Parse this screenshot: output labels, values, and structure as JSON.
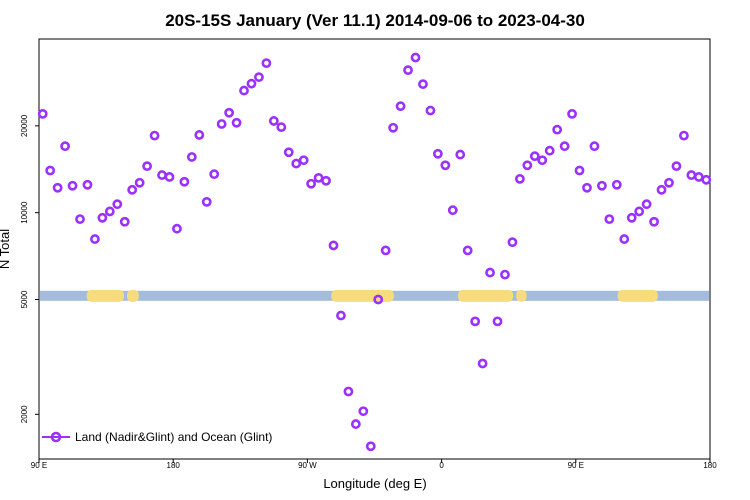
{
  "chart_data": {
    "type": "scatter",
    "title": "20S-15S January (Ver 11.1)   2014-09-06 to 2023-04-30",
    "xlabel": "Longitude (deg E)",
    "ylabel": "N Total",
    "y_scale": "log",
    "ylim": [
      1400,
      40000
    ],
    "x_ticks": [
      {
        "value": 90,
        "label": "90 E"
      },
      {
        "value": 180,
        "label": "180"
      },
      {
        "value": 270,
        "label": "90 W"
      },
      {
        "value": 360,
        "label": "0"
      },
      {
        "value": 450,
        "label": "90 E"
      },
      {
        "value": 540,
        "label": "180"
      }
    ],
    "y_ticks": [
      {
        "value": 2000,
        "label": "2000"
      },
      {
        "value": 5000,
        "label": "5000"
      },
      {
        "value": 10000,
        "label": "10000"
      },
      {
        "value": 20000,
        "label": "20000"
      }
    ],
    "xlim": [
      90,
      540
    ],
    "legend": {
      "position": "bottom-left",
      "entries": [
        "Land (Nadir&Glint) and Ocean (Glint)"
      ]
    },
    "colors": {
      "marker": "#9b30ff",
      "ocean": "#a3bcdc",
      "land": "#f7dc7d"
    },
    "series": [
      {
        "name": "Land (Nadir&Glint) and Ocean (Glint)",
        "x": [
          92.5,
          97.5,
          102.5,
          107.5,
          112.5,
          117.5,
          122.5,
          127.5,
          132.5,
          137.5,
          142.5,
          147.5,
          152.5,
          157.5,
          162.5,
          167.5,
          172.5,
          177.5,
          182.5,
          187.5,
          192.5,
          197.5,
          202.5,
          207.5,
          212.5,
          217.5,
          222.5,
          227.5,
          232.5,
          237.5,
          242.5,
          247.5,
          252.5,
          257.5,
          262.5,
          267.5,
          272.5,
          277.5,
          282.5,
          287.5,
          292.5,
          297.5,
          302.5,
          307.5,
          312.5,
          317.5,
          322.5,
          327.5,
          332.5,
          337.5,
          342.5,
          347.5,
          352.5,
          357.5,
          362.5,
          367.5,
          372.5,
          377.5,
          382.5,
          387.5,
          392.5,
          397.5,
          402.5,
          407.5,
          412.5,
          417.5,
          422.5,
          427.5,
          432.5,
          437.5,
          442.5,
          447.5,
          452.5,
          457.5,
          462.5,
          467.5,
          472.5,
          477.5,
          482.5,
          487.5,
          492.5,
          497.5,
          502.5,
          507.5,
          512.5,
          517.5,
          522.5,
          527.5,
          532.5,
          537.5
        ],
        "y": [
          22000,
          14000,
          12200,
          17000,
          12400,
          9500,
          12500,
          8100,
          9600,
          10100,
          10700,
          9300,
          12000,
          12700,
          14500,
          18500,
          13500,
          13300,
          8800,
          12800,
          15600,
          18600,
          10900,
          13600,
          20300,
          22200,
          20500,
          26500,
          28000,
          29500,
          33000,
          20800,
          19800,
          16200,
          14800,
          15200,
          12600,
          13200,
          12900,
          7700,
          4400,
          2400,
          1850,
          2050,
          1550,
          5000,
          7400,
          19700,
          23400,
          31200,
          34500,
          27900,
          22600,
          16000,
          14600,
          10200,
          15900,
          7400,
          4200,
          3000,
          6200,
          4200,
          6100,
          7900,
          13100,
          14600,
          15700,
          15200,
          16400,
          19400,
          17000,
          22000,
          14000,
          12200,
          17000,
          12400,
          9500,
          12500,
          8100,
          9600,
          10100,
          10700,
          9300,
          12000,
          12700,
          14500,
          18500,
          13500,
          13300,
          13000
        ]
      }
    ],
    "surface_band": {
      "y_center": 5150,
      "land_ranges": [
        [
          122,
          147
        ],
        [
          149,
          157
        ],
        [
          286,
          328
        ],
        [
          371,
          408
        ],
        [
          410,
          417
        ],
        [
          478,
          505
        ]
      ]
    }
  }
}
